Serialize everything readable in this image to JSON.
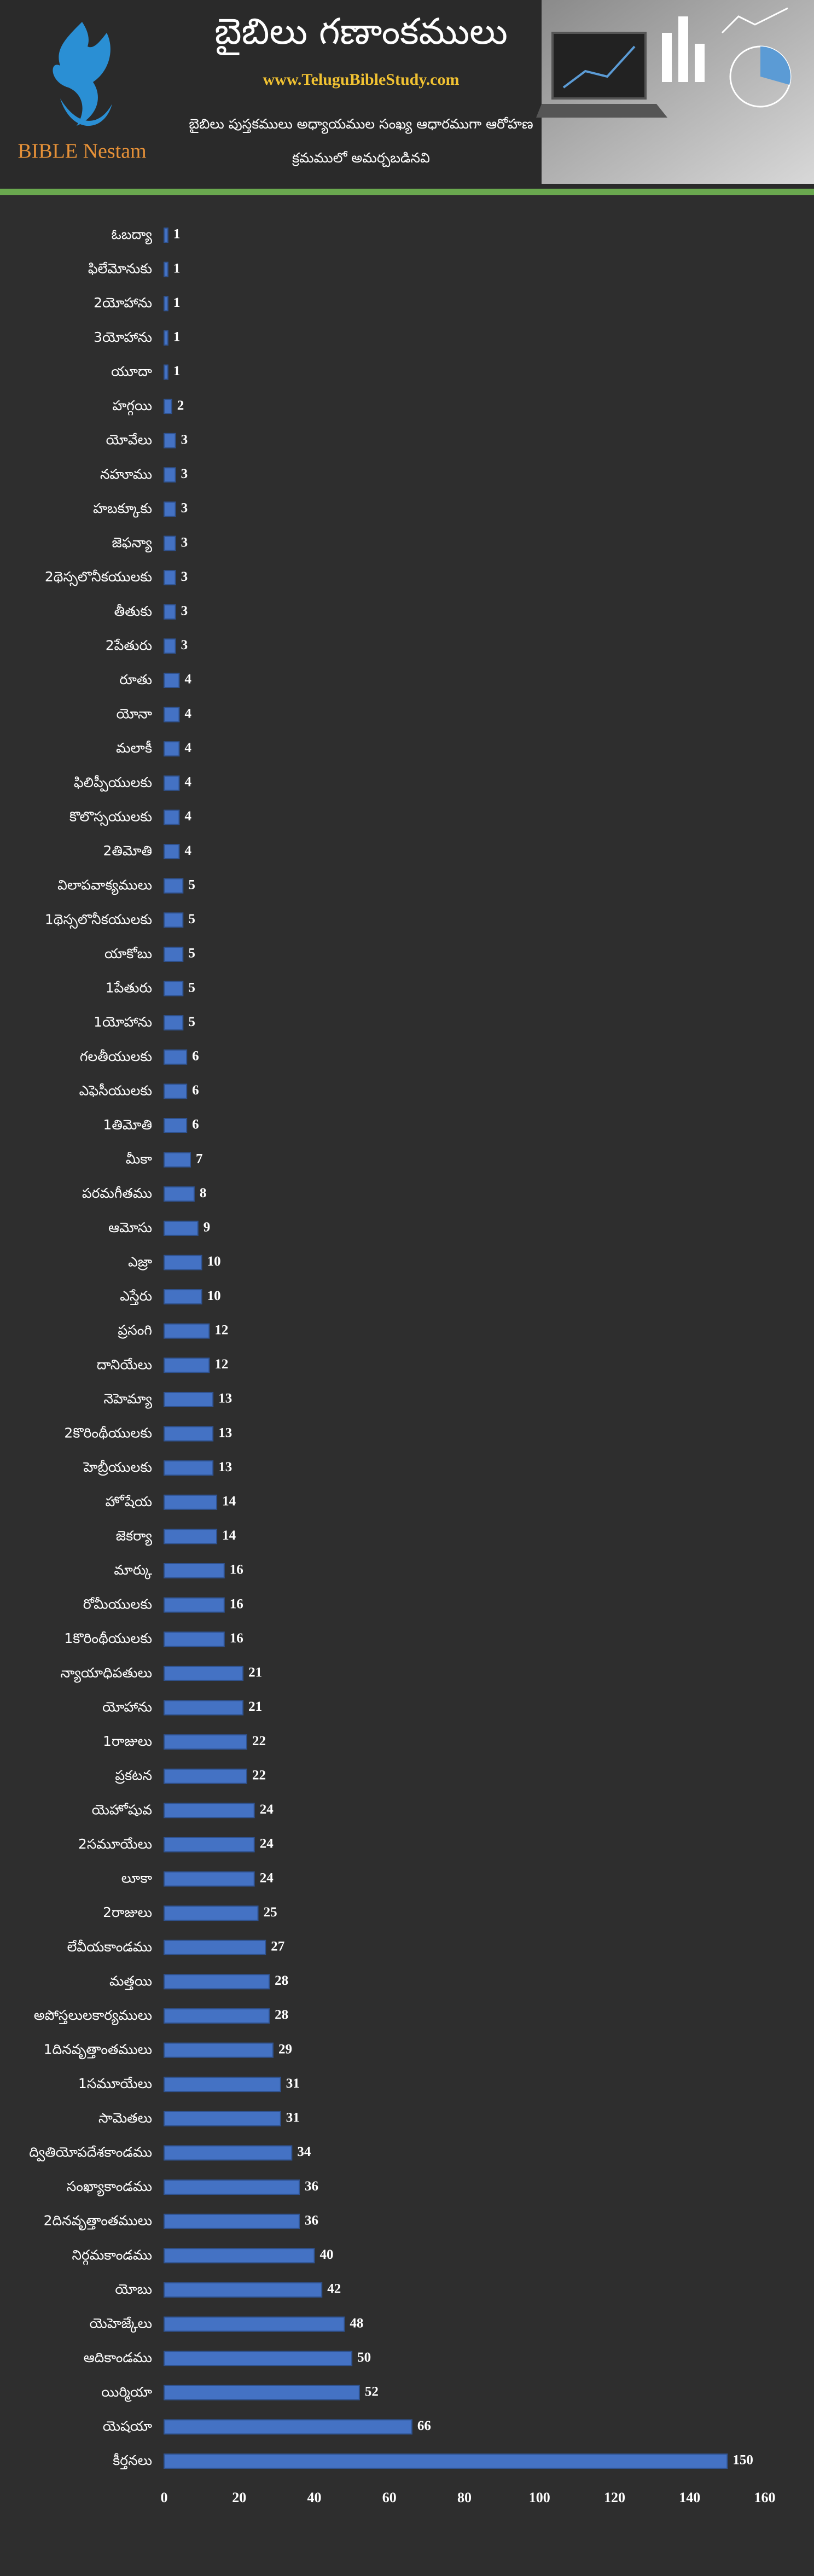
{
  "header": {
    "logo_text": "BIBLE Nestam",
    "title": "బైబిలు గణాంకములు",
    "url": "www.TeluguBibleStudy.com",
    "subtitle": [
      "బైబిలు పుస్తకములు అధ్యాయముల సంఖ్య ఆధారముగా ఆరోహణ",
      "క్రమములో అమర్చబడినవి"
    ]
  },
  "chart_data": {
    "type": "bar",
    "orientation": "horizontal",
    "categories": [
      "ఓబద్యా",
      "ఫిలేమోనుకు",
      "2యోహాను",
      "3యోహాను",
      "యూదా",
      "హగ్గయి",
      "యోవేలు",
      "నహూము",
      "హబక్కూకు",
      "జెఫన్యా",
      "2థెస్సలొనీకయులకు",
      "తీతుకు",
      "2పేతురు",
      "రూతు",
      "యోనా",
      "మలాకీ",
      "ఫిలిప్పీయులకు",
      "కొలొస్సయులకు",
      "2తిమోతి",
      "విలాపవాక్యములు",
      "1థెస్సలొనీకయులకు",
      "యాకోబు",
      "1పేతురు",
      "1యోహాను",
      "గలతీయులకు",
      "ఎఫెసీయులకు",
      "1తిమోతి",
      "మీకా",
      "పరమగీతము",
      "ఆమోసు",
      "ఎజ్రా",
      "ఎస్తేరు",
      "ప్రసంగి",
      "దానియేలు",
      "నెహెమ్యా",
      "2కొరింథీయులకు",
      "హెబ్రీయులకు",
      "హోషేయ",
      "జెకర్యా",
      "మార్కు",
      "రోమీయులకు",
      "1కొరింథీయులకు",
      "న్యాయాధిపతులు",
      "యోహాను",
      "1రాజులు",
      "ప్రకటన",
      "యెహోషువ",
      "2సమూయేలు",
      "లూకా",
      "2రాజులు",
      "లేవీయకాండము",
      "మత్తయి",
      "అపోస్తలులకార్యములు",
      "1దినవృత్తాంతములు",
      "1సమూయేలు",
      "సామెతలు",
      "ద్వితియోపదేశకాండము",
      "సంఖ్యాకాండము",
      "2దినవృత్తాంతములు",
      "నిర్గమకాండము",
      "యోబు",
      "యెహెజ్కేలు",
      "ఆదికాండము",
      "యిర్మియా",
      "యెషయా",
      "కీర్తనలు"
    ],
    "values": [
      1,
      1,
      1,
      1,
      1,
      2,
      3,
      3,
      3,
      3,
      3,
      3,
      3,
      4,
      4,
      4,
      4,
      4,
      4,
      5,
      5,
      5,
      5,
      5,
      6,
      6,
      6,
      7,
      8,
      9,
      10,
      10,
      12,
      12,
      13,
      13,
      13,
      14,
      14,
      16,
      16,
      16,
      21,
      21,
      22,
      22,
      24,
      24,
      24,
      25,
      27,
      28,
      28,
      29,
      31,
      31,
      34,
      36,
      36,
      40,
      42,
      48,
      50,
      52,
      66,
      150
    ],
    "color": "#4472c4",
    "xlim": [
      0,
      160
    ],
    "xticks": [
      0,
      20,
      40,
      60,
      80,
      100,
      120,
      140,
      160
    ],
    "grid": false
  }
}
